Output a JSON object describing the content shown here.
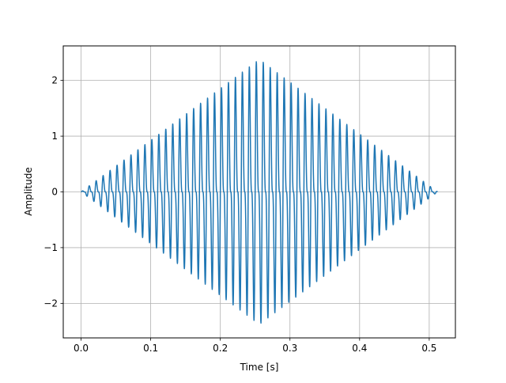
{
  "chart_data": {
    "type": "line",
    "title": "",
    "xlabel": "Time [s]",
    "ylabel": "Amplitude",
    "xlim": [
      -0.0256,
      0.5376
    ],
    "ylim": [
      -2.62,
      2.62
    ],
    "grid": true,
    "xticks": [
      0.0,
      0.1,
      0.2,
      0.3,
      0.4,
      0.5
    ],
    "xtick_labels": [
      "0.0",
      "0.1",
      "0.2",
      "0.3",
      "0.4",
      "0.5"
    ],
    "yticks": [
      -2,
      -1,
      0,
      1,
      2
    ],
    "ytick_labels": [
      "−2",
      "−1",
      "0",
      "1",
      "2"
    ],
    "series": [
      {
        "style": "solid",
        "color": "#1f77b4",
        "x_start": 0.0,
        "x_end": 0.512,
        "samples": 2048,
        "envelope_peak": 2.38,
        "envelope_center": 0.256,
        "envelope_shape": "triangular",
        "signal": "sin(2*pi*100*t) + 0.5*sin(2*pi*200*t)"
      }
    ]
  }
}
